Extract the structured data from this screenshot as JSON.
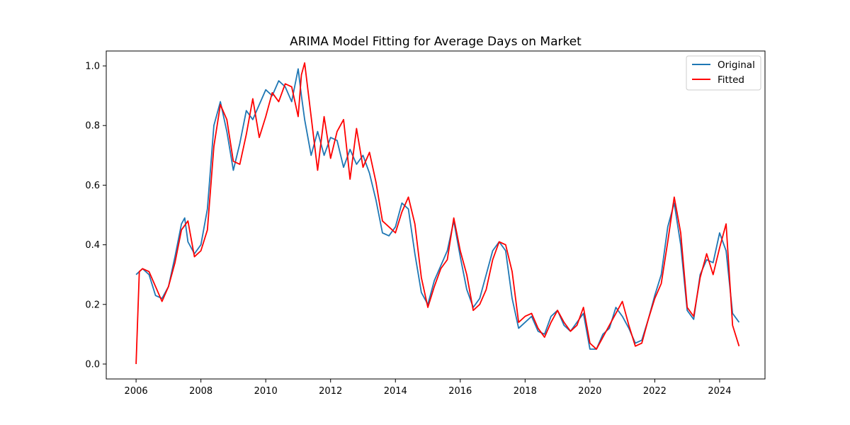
{
  "chart_data": {
    "type": "line",
    "title": "ARIMA Model Fitting for Average Days on Market",
    "xlabel": "",
    "ylabel": "",
    "xlim": [
      2005.08,
      2025.4
    ],
    "ylim": [
      -0.05,
      1.05
    ],
    "x_ticks": [
      2006,
      2008,
      2010,
      2012,
      2014,
      2016,
      2018,
      2020,
      2022,
      2024
    ],
    "x_tick_labels": [
      "2006",
      "2008",
      "2010",
      "2012",
      "2014",
      "2016",
      "2018",
      "2020",
      "2022",
      "2024"
    ],
    "y_ticks": [
      0.0,
      0.2,
      0.4,
      0.6,
      0.8,
      1.0
    ],
    "y_tick_labels": [
      "0.0",
      "0.2",
      "0.4",
      "0.6",
      "0.8",
      "1.0"
    ],
    "grid": false,
    "legend_position": "top-right",
    "series": [
      {
        "name": "Original",
        "color": "#1f77b4",
        "points": [
          [
            2006.0,
            0.3
          ],
          [
            2006.2,
            0.32
          ],
          [
            2006.4,
            0.3
          ],
          [
            2006.6,
            0.23
          ],
          [
            2006.8,
            0.22
          ],
          [
            2007.0,
            0.26
          ],
          [
            2007.2,
            0.36
          ],
          [
            2007.4,
            0.47
          ],
          [
            2007.5,
            0.49
          ],
          [
            2007.6,
            0.41
          ],
          [
            2007.8,
            0.37
          ],
          [
            2008.0,
            0.4
          ],
          [
            2008.2,
            0.52
          ],
          [
            2008.4,
            0.8
          ],
          [
            2008.6,
            0.88
          ],
          [
            2008.8,
            0.78
          ],
          [
            2009.0,
            0.65
          ],
          [
            2009.2,
            0.74
          ],
          [
            2009.4,
            0.85
          ],
          [
            2009.6,
            0.82
          ],
          [
            2009.8,
            0.87
          ],
          [
            2010.0,
            0.92
          ],
          [
            2010.2,
            0.9
          ],
          [
            2010.4,
            0.95
          ],
          [
            2010.6,
            0.93
          ],
          [
            2010.8,
            0.88
          ],
          [
            2011.0,
            0.99
          ],
          [
            2011.1,
            0.9
          ],
          [
            2011.2,
            0.82
          ],
          [
            2011.4,
            0.7
          ],
          [
            2011.6,
            0.78
          ],
          [
            2011.8,
            0.7
          ],
          [
            2012.0,
            0.76
          ],
          [
            2012.2,
            0.75
          ],
          [
            2012.4,
            0.66
          ],
          [
            2012.6,
            0.72
          ],
          [
            2012.8,
            0.67
          ],
          [
            2013.0,
            0.7
          ],
          [
            2013.2,
            0.64
          ],
          [
            2013.4,
            0.55
          ],
          [
            2013.6,
            0.44
          ],
          [
            2013.8,
            0.43
          ],
          [
            2014.0,
            0.46
          ],
          [
            2014.2,
            0.54
          ],
          [
            2014.4,
            0.52
          ],
          [
            2014.6,
            0.37
          ],
          [
            2014.8,
            0.24
          ],
          [
            2015.0,
            0.2
          ],
          [
            2015.2,
            0.28
          ],
          [
            2015.4,
            0.33
          ],
          [
            2015.6,
            0.38
          ],
          [
            2015.8,
            0.48
          ],
          [
            2016.0,
            0.36
          ],
          [
            2016.2,
            0.25
          ],
          [
            2016.4,
            0.19
          ],
          [
            2016.6,
            0.22
          ],
          [
            2016.8,
            0.3
          ],
          [
            2017.0,
            0.38
          ],
          [
            2017.2,
            0.41
          ],
          [
            2017.4,
            0.38
          ],
          [
            2017.6,
            0.22
          ],
          [
            2017.8,
            0.12
          ],
          [
            2018.0,
            0.14
          ],
          [
            2018.2,
            0.16
          ],
          [
            2018.4,
            0.11
          ],
          [
            2018.6,
            0.1
          ],
          [
            2018.8,
            0.16
          ],
          [
            2019.0,
            0.18
          ],
          [
            2019.2,
            0.13
          ],
          [
            2019.4,
            0.11
          ],
          [
            2019.6,
            0.14
          ],
          [
            2019.8,
            0.17
          ],
          [
            2020.0,
            0.05
          ],
          [
            2020.2,
            0.05
          ],
          [
            2020.4,
            0.1
          ],
          [
            2020.6,
            0.12
          ],
          [
            2020.8,
            0.19
          ],
          [
            2021.0,
            0.16
          ],
          [
            2021.2,
            0.12
          ],
          [
            2021.4,
            0.07
          ],
          [
            2021.6,
            0.08
          ],
          [
            2021.8,
            0.15
          ],
          [
            2022.0,
            0.23
          ],
          [
            2022.2,
            0.3
          ],
          [
            2022.4,
            0.46
          ],
          [
            2022.6,
            0.54
          ],
          [
            2022.8,
            0.4
          ],
          [
            2023.0,
            0.18
          ],
          [
            2023.2,
            0.15
          ],
          [
            2023.4,
            0.3
          ],
          [
            2023.6,
            0.35
          ],
          [
            2023.8,
            0.34
          ],
          [
            2024.0,
            0.44
          ],
          [
            2024.2,
            0.38
          ],
          [
            2024.4,
            0.17
          ],
          [
            2024.6,
            0.14
          ]
        ]
      },
      {
        "name": "Fitted",
        "color": "#ff0000",
        "points": [
          [
            2006.0,
            0.0
          ],
          [
            2006.1,
            0.31
          ],
          [
            2006.2,
            0.32
          ],
          [
            2006.4,
            0.31
          ],
          [
            2006.6,
            0.26
          ],
          [
            2006.8,
            0.21
          ],
          [
            2007.0,
            0.26
          ],
          [
            2007.2,
            0.34
          ],
          [
            2007.4,
            0.45
          ],
          [
            2007.6,
            0.48
          ],
          [
            2007.8,
            0.36
          ],
          [
            2008.0,
            0.38
          ],
          [
            2008.2,
            0.45
          ],
          [
            2008.4,
            0.73
          ],
          [
            2008.6,
            0.87
          ],
          [
            2008.8,
            0.82
          ],
          [
            2009.0,
            0.68
          ],
          [
            2009.2,
            0.67
          ],
          [
            2009.4,
            0.77
          ],
          [
            2009.6,
            0.89
          ],
          [
            2009.8,
            0.76
          ],
          [
            2010.0,
            0.83
          ],
          [
            2010.2,
            0.91
          ],
          [
            2010.4,
            0.88
          ],
          [
            2010.6,
            0.94
          ],
          [
            2010.8,
            0.93
          ],
          [
            2011.0,
            0.83
          ],
          [
            2011.1,
            0.97
          ],
          [
            2011.2,
            1.01
          ],
          [
            2011.4,
            0.83
          ],
          [
            2011.6,
            0.65
          ],
          [
            2011.8,
            0.83
          ],
          [
            2012.0,
            0.69
          ],
          [
            2012.2,
            0.78
          ],
          [
            2012.4,
            0.82
          ],
          [
            2012.6,
            0.62
          ],
          [
            2012.8,
            0.79
          ],
          [
            2013.0,
            0.66
          ],
          [
            2013.2,
            0.71
          ],
          [
            2013.4,
            0.61
          ],
          [
            2013.6,
            0.48
          ],
          [
            2013.8,
            0.46
          ],
          [
            2014.0,
            0.44
          ],
          [
            2014.2,
            0.51
          ],
          [
            2014.4,
            0.56
          ],
          [
            2014.6,
            0.47
          ],
          [
            2014.8,
            0.29
          ],
          [
            2015.0,
            0.19
          ],
          [
            2015.2,
            0.26
          ],
          [
            2015.4,
            0.32
          ],
          [
            2015.6,
            0.35
          ],
          [
            2015.8,
            0.49
          ],
          [
            2016.0,
            0.38
          ],
          [
            2016.2,
            0.3
          ],
          [
            2016.4,
            0.18
          ],
          [
            2016.6,
            0.2
          ],
          [
            2016.8,
            0.25
          ],
          [
            2017.0,
            0.35
          ],
          [
            2017.2,
            0.41
          ],
          [
            2017.4,
            0.4
          ],
          [
            2017.6,
            0.31
          ],
          [
            2017.8,
            0.14
          ],
          [
            2018.0,
            0.16
          ],
          [
            2018.2,
            0.17
          ],
          [
            2018.4,
            0.12
          ],
          [
            2018.6,
            0.09
          ],
          [
            2018.8,
            0.14
          ],
          [
            2019.0,
            0.18
          ],
          [
            2019.2,
            0.14
          ],
          [
            2019.4,
            0.11
          ],
          [
            2019.6,
            0.13
          ],
          [
            2019.8,
            0.19
          ],
          [
            2020.0,
            0.07
          ],
          [
            2020.2,
            0.05
          ],
          [
            2020.4,
            0.09
          ],
          [
            2020.6,
            0.13
          ],
          [
            2020.8,
            0.17
          ],
          [
            2021.0,
            0.21
          ],
          [
            2021.2,
            0.13
          ],
          [
            2021.4,
            0.06
          ],
          [
            2021.6,
            0.07
          ],
          [
            2021.8,
            0.15
          ],
          [
            2022.0,
            0.22
          ],
          [
            2022.2,
            0.27
          ],
          [
            2022.4,
            0.41
          ],
          [
            2022.6,
            0.56
          ],
          [
            2022.8,
            0.44
          ],
          [
            2023.0,
            0.19
          ],
          [
            2023.2,
            0.16
          ],
          [
            2023.4,
            0.29
          ],
          [
            2023.6,
            0.37
          ],
          [
            2023.8,
            0.3
          ],
          [
            2024.0,
            0.39
          ],
          [
            2024.2,
            0.47
          ],
          [
            2024.4,
            0.13
          ],
          [
            2024.6,
            0.06
          ]
        ]
      }
    ]
  }
}
